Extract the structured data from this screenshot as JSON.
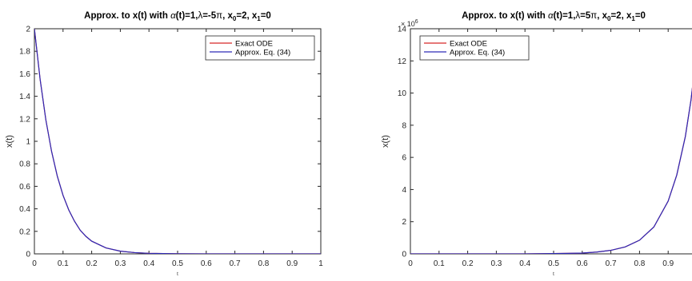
{
  "chart_data": [
    {
      "type": "line",
      "title": {
        "prefix": "Approx. to x(t) with ",
        "alpha": "α",
        "mid1": "(t)=1,",
        "lambda": "λ",
        "lambda_value": "=-5",
        "pi": "π",
        "x0_part": ", x",
        "x0_sub": "0",
        "x0_value": "=2, x",
        "x1_sub": "1",
        "x1_value": "=0"
      },
      "xlabel": "t",
      "ylabel": "x(t)",
      "xlim": [
        0,
        1
      ],
      "ylim": [
        0,
        2
      ],
      "xticks": [
        "0",
        "0.1",
        "0.2",
        "0.3",
        "0.4",
        "0.5",
        "0.6",
        "0.7",
        "0.8",
        "0.9",
        "1"
      ],
      "yticks": [
        "0",
        "0.2",
        "0.4",
        "0.6",
        "0.8",
        "1",
        "1.2",
        "1.4",
        "1.6",
        "1.8",
        "2"
      ],
      "grid": false,
      "legend": "top-right",
      "series": [
        {
          "name": "Exact ODE",
          "color": "#d62728",
          "x": [
            0,
            0.02,
            0.04,
            0.06,
            0.08,
            0.1,
            0.12,
            0.14,
            0.16,
            0.18,
            0.2,
            0.25,
            0.3,
            0.35,
            0.4,
            0.5,
            0.6,
            0.7,
            0.8,
            0.9,
            1.0
          ],
          "y": [
            2.0,
            1.55,
            1.19,
            0.91,
            0.69,
            0.52,
            0.39,
            0.29,
            0.21,
            0.155,
            0.113,
            0.053,
            0.024,
            0.011,
            0.005,
            0.001,
            0.0,
            0.0,
            0.0,
            0.0,
            0.0
          ]
        },
        {
          "name": "Approx. Eq. (34)",
          "color": "#2d2ab8",
          "x": [
            0,
            0.02,
            0.04,
            0.06,
            0.08,
            0.1,
            0.12,
            0.14,
            0.16,
            0.18,
            0.2,
            0.25,
            0.3,
            0.35,
            0.4,
            0.5,
            0.6,
            0.7,
            0.8,
            0.9,
            1.0
          ],
          "y": [
            2.0,
            1.55,
            1.19,
            0.91,
            0.69,
            0.52,
            0.39,
            0.29,
            0.21,
            0.155,
            0.113,
            0.053,
            0.024,
            0.011,
            0.005,
            0.001,
            0.0,
            0.0,
            0.0,
            0.0,
            0.0
          ]
        }
      ]
    },
    {
      "type": "line",
      "title": {
        "prefix": "Approx. to x(t) with ",
        "alpha": "α",
        "mid1": "(t)=1,",
        "lambda": "λ",
        "lambda_value": "=5",
        "pi": "π",
        "x0_part": ", x",
        "x0_sub": "0",
        "x0_value": "=2, x",
        "x1_sub": "1",
        "x1_value": "=0"
      },
      "xlabel": "t",
      "ylabel": "x(t)",
      "xlim": [
        0,
        1
      ],
      "ylim": [
        0,
        14
      ],
      "y_exponent_base": "× 10",
      "y_exponent_power": "6",
      "y_scale_factor": 1000000,
      "xticks": [
        "0",
        "0.1",
        "0.2",
        "0.3",
        "0.4",
        "0.5",
        "0.6",
        "0.7",
        "0.8",
        "0.9"
      ],
      "yticks": [
        "0",
        "2",
        "4",
        "6",
        "8",
        "10",
        "12",
        "14"
      ],
      "grid": false,
      "legend": "top-left",
      "series": [
        {
          "name": "Exact ODE",
          "color": "#d62728",
          "x": [
            0,
            0.1,
            0.2,
            0.3,
            0.4,
            0.5,
            0.55,
            0.6,
            0.65,
            0.7,
            0.75,
            0.8,
            0.85,
            0.9,
            0.93,
            0.96,
            0.98,
            1.0
          ],
          "y": [
            0.0,
            0.0,
            0.0,
            0.0,
            0.0,
            0.02,
            0.03,
            0.05,
            0.11,
            0.22,
            0.43,
            0.85,
            1.67,
            3.28,
            4.9,
            7.3,
            9.6,
            12.7
          ]
        },
        {
          "name": "Approx. Eq. (34)",
          "color": "#2d2ab8",
          "x": [
            0,
            0.1,
            0.2,
            0.3,
            0.4,
            0.5,
            0.55,
            0.6,
            0.65,
            0.7,
            0.75,
            0.8,
            0.85,
            0.9,
            0.93,
            0.96,
            0.98,
            1.0
          ],
          "y": [
            0.0,
            0.0,
            0.0,
            0.0,
            0.0,
            0.02,
            0.03,
            0.05,
            0.11,
            0.22,
            0.43,
            0.85,
            1.67,
            3.28,
            4.9,
            7.3,
            9.6,
            12.7
          ]
        }
      ]
    }
  ]
}
